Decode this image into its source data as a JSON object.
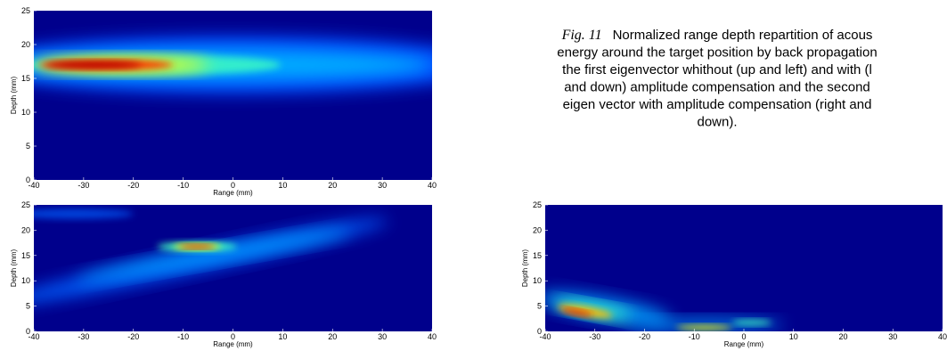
{
  "chart_data": [
    {
      "type": "heatmap",
      "xlabel": "Range (mm)",
      "ylabel": "Depth (mm)",
      "xlim": [
        -40,
        40
      ],
      "ylim": [
        0,
        25
      ],
      "xticks": [
        -40,
        -30,
        -20,
        -10,
        0,
        10,
        20,
        30,
        40
      ],
      "yticks": [
        0,
        5,
        10,
        15,
        20,
        25
      ]
    },
    {
      "type": "heatmap",
      "xlabel": "Range (mm)",
      "ylabel": "Depth (mm)",
      "xlim": [
        -40,
        40
      ],
      "ylim": [
        0,
        25
      ],
      "xticks": [
        -40,
        -30,
        -20,
        -10,
        0,
        10,
        20,
        30,
        40
      ],
      "yticks": [
        0,
        5,
        10,
        15,
        20,
        25
      ]
    },
    {
      "type": "heatmap",
      "xlabel": "Range (mm)",
      "ylabel": "Depth (mm)",
      "xlim": [
        -40,
        40
      ],
      "ylim": [
        0,
        25
      ],
      "xticks": [
        -40,
        -30,
        -20,
        -10,
        0,
        10,
        20,
        30,
        40
      ],
      "yticks": [
        0,
        5,
        10,
        15,
        20,
        25
      ]
    }
  ],
  "caption": {
    "label": "Fig. 11",
    "lines": [
      "Normalized range depth repartition of acous",
      "energy around the target position by back propagation",
      "the first eigenvector whithout (up and left) and with (l",
      "and down) amplitude compensation and the second",
      "eigen vector with amplitude compensation (right and",
      "down)."
    ]
  }
}
